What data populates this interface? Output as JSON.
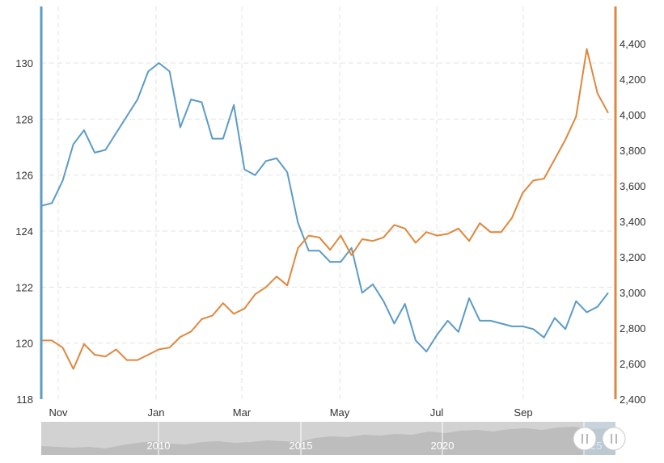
{
  "chart_data": {
    "type": "line",
    "title": "",
    "xlabel": "",
    "x_ticks": [
      "Nov",
      "Jan",
      "Mar",
      "May",
      "Jul",
      "Sep"
    ],
    "grid": true,
    "legend": "none",
    "y_left": {
      "min": 118,
      "max": 130,
      "ticks": [
        118,
        120,
        122,
        124,
        126,
        128,
        130
      ],
      "tick_labels": [
        "118",
        "120",
        "122",
        "124",
        "126",
        "128",
        "130"
      ]
    },
    "y_right": {
      "min": 2400,
      "max": 4400,
      "ticks": [
        2400,
        2600,
        2800,
        3000,
        3200,
        3400,
        3600,
        3800,
        4000,
        4200,
        4400
      ],
      "tick_labels": [
        "2,400",
        "2,600",
        "2,800",
        "3,000",
        "3,200",
        "3,400",
        "3,600",
        "3,800",
        "4,000",
        "4,200",
        "4,400"
      ]
    },
    "series": [
      {
        "axis": "left",
        "color": "#5b9bc8",
        "values": [
          124.9,
          125.0,
          125.8,
          127.1,
          127.6,
          126.8,
          126.9,
          127.5,
          128.1,
          128.7,
          129.7,
          130.0,
          129.7,
          127.7,
          128.7,
          128.6,
          127.3,
          127.3,
          128.5,
          126.2,
          126.0,
          126.5,
          126.6,
          126.1,
          124.3,
          123.3,
          123.3,
          122.9,
          122.9,
          123.4,
          121.8,
          122.1,
          121.5,
          120.7,
          121.4,
          120.1,
          119.7,
          120.3,
          120.8,
          120.4,
          121.6,
          120.8,
          120.8,
          120.7,
          120.6,
          120.6,
          120.5,
          120.2,
          120.9,
          120.5,
          121.5,
          121.1,
          121.3,
          121.8
        ]
      },
      {
        "axis": "right",
        "color": "#e0873c",
        "values": [
          2730,
          2730,
          2690,
          2570,
          2710,
          2650,
          2640,
          2680,
          2620,
          2620,
          2650,
          2680,
          2690,
          2750,
          2780,
          2850,
          2870,
          2940,
          2880,
          2910,
          2990,
          3030,
          3090,
          3040,
          3250,
          3320,
          3310,
          3240,
          3320,
          3210,
          3300,
          3290,
          3310,
          3380,
          3360,
          3280,
          3340,
          3320,
          3330,
          3360,
          3290,
          3390,
          3340,
          3340,
          3420,
          3560,
          3630,
          3640,
          3750,
          3860,
          3990,
          4370,
          4120,
          4010
        ]
      }
    ]
  },
  "navigator": {
    "year_labels": [
      "2010",
      "2015",
      "2020",
      "'25"
    ]
  }
}
